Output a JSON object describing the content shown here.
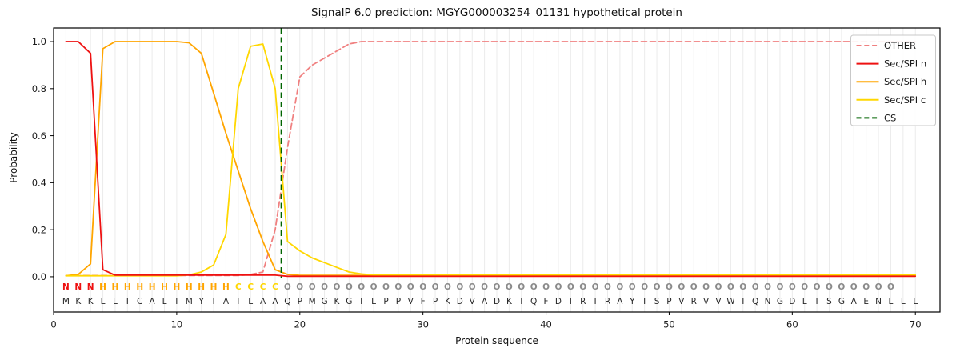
{
  "figure": {
    "title": "SignalP 6.0 prediction: MGYG000003254_01131 hypothetical protein",
    "xlabel": "Protein sequence",
    "ylabel": "Probability"
  },
  "chart_data": {
    "type": "line",
    "title": "SignalP 6.0 prediction: MGYG000003254_01131 hypothetical protein",
    "xlabel": "Protein sequence",
    "ylabel": "Probability",
    "xlim": [
      0,
      72
    ],
    "ylim": [
      -0.15,
      1.058
    ],
    "x_ticks": [
      0,
      10,
      20,
      30,
      40,
      50,
      60,
      70
    ],
    "y_ticks": [
      0.0,
      0.2,
      0.4,
      0.6,
      0.8,
      1.0
    ],
    "grid": "vertical gridline at every residue position, light gray",
    "legend_position": "upper-right",
    "x": [
      1,
      2,
      3,
      4,
      5,
      6,
      7,
      8,
      9,
      10,
      11,
      12,
      13,
      14,
      15,
      16,
      17,
      18,
      19,
      20,
      21,
      22,
      23,
      24,
      25,
      26,
      27,
      28,
      29,
      30,
      31,
      32,
      33,
      34,
      35,
      36,
      37,
      38,
      39,
      40,
      41,
      42,
      43,
      44,
      45,
      46,
      47,
      48,
      49,
      50,
      51,
      52,
      53,
      54,
      55,
      56,
      57,
      58,
      59,
      60,
      61,
      62,
      63,
      64,
      65,
      66,
      67,
      68,
      69,
      70
    ],
    "series": [
      {
        "name": "OTHER",
        "color": "#f08080",
        "style": "dashed",
        "values": [
          0.005,
          0.005,
          0.005,
          0.005,
          0.005,
          0.005,
          0.005,
          0.005,
          0.005,
          0.005,
          0.005,
          0.005,
          0.005,
          0.005,
          0.005,
          0.01,
          0.02,
          0.2,
          0.55,
          0.85,
          0.9,
          0.93,
          0.96,
          0.99,
          1.0,
          1.0,
          1.0,
          1.0,
          1.0,
          1.0,
          1.0,
          1.0,
          1.0,
          1.0,
          1.0,
          1.0,
          1.0,
          1.0,
          1.0,
          1.0,
          1.0,
          1.0,
          1.0,
          1.0,
          1.0,
          1.0,
          1.0,
          1.0,
          1.0,
          1.0,
          1.0,
          1.0,
          1.0,
          1.0,
          1.0,
          1.0,
          1.0,
          1.0,
          1.0,
          1.0,
          1.0,
          1.0,
          1.0,
          1.0,
          1.0,
          1.0,
          1.0,
          1.0,
          1.0,
          1.0
        ]
      },
      {
        "name": "Sec/SPI n",
        "color": "#ee1111",
        "style": "solid",
        "values": [
          1.0,
          1.0,
          0.95,
          0.03,
          0.007,
          0.007,
          0.007,
          0.007,
          0.007,
          0.007,
          0.007,
          0.007,
          0.007,
          0.007,
          0.007,
          0.007,
          0.007,
          0.007,
          0.002,
          0.002,
          0.002,
          0.002,
          0.002,
          0.002,
          0.002,
          0.002,
          0.002,
          0.002,
          0.002,
          0.002,
          0.002,
          0.002,
          0.002,
          0.002,
          0.002,
          0.002,
          0.002,
          0.002,
          0.002,
          0.002,
          0.002,
          0.002,
          0.002,
          0.002,
          0.002,
          0.002,
          0.002,
          0.002,
          0.002,
          0.002,
          0.002,
          0.002,
          0.002,
          0.002,
          0.002,
          0.002,
          0.002,
          0.002,
          0.002,
          0.002,
          0.002,
          0.002,
          0.002,
          0.002,
          0.002,
          0.002,
          0.002,
          0.002,
          0.002,
          0.002
        ]
      },
      {
        "name": "Sec/SPI h",
        "color": "#ffa500",
        "style": "solid",
        "values": [
          0.004,
          0.01,
          0.055,
          0.97,
          1.0,
          1.0,
          1.0,
          1.0,
          1.0,
          1.0,
          0.995,
          0.95,
          0.78,
          0.61,
          0.45,
          0.29,
          0.15,
          0.03,
          0.01,
          0.006,
          0.006,
          0.006,
          0.006,
          0.006,
          0.006,
          0.006,
          0.006,
          0.006,
          0.006,
          0.006,
          0.006,
          0.006,
          0.006,
          0.006,
          0.006,
          0.006,
          0.006,
          0.006,
          0.006,
          0.006,
          0.006,
          0.006,
          0.006,
          0.006,
          0.006,
          0.006,
          0.006,
          0.006,
          0.006,
          0.006,
          0.006,
          0.006,
          0.006,
          0.006,
          0.006,
          0.006,
          0.006,
          0.006,
          0.006,
          0.006,
          0.006,
          0.006,
          0.006,
          0.006,
          0.006,
          0.006,
          0.006,
          0.006,
          0.006,
          0.006
        ]
      },
      {
        "name": "Sec/SPI c",
        "color": "#ffd700",
        "style": "solid",
        "values": [
          0.004,
          0.004,
          0.004,
          0.004,
          0.004,
          0.004,
          0.004,
          0.004,
          0.004,
          0.004,
          0.008,
          0.02,
          0.05,
          0.18,
          0.8,
          0.98,
          0.99,
          0.8,
          0.15,
          0.11,
          0.08,
          0.06,
          0.04,
          0.02,
          0.012,
          0.008,
          0.008,
          0.008,
          0.008,
          0.008,
          0.008,
          0.008,
          0.008,
          0.008,
          0.008,
          0.008,
          0.008,
          0.008,
          0.008,
          0.008,
          0.008,
          0.008,
          0.008,
          0.008,
          0.008,
          0.008,
          0.008,
          0.008,
          0.008,
          0.008,
          0.008,
          0.008,
          0.008,
          0.008,
          0.008,
          0.008,
          0.008,
          0.008,
          0.008,
          0.008,
          0.008,
          0.008,
          0.008,
          0.008,
          0.008,
          0.008,
          0.008,
          0.008,
          0.008,
          0.008
        ]
      }
    ],
    "cs_marker": {
      "name": "CS",
      "x": 18.5,
      "color": "#006400",
      "style": "dashed"
    },
    "legend_items": [
      "OTHER",
      "Sec/SPI n",
      "Sec/SPI h",
      "Sec/SPI c",
      "CS"
    ],
    "sequence": "MKKLLICALTMYTATLAAQPMGKGTLPPVFPKDVADKTQFDTRTRAYISPVRVVWTQNGDLISGAENLLL",
    "regions": "NNNHHHHHHHHHHHCCCCOOOOOOOOOOOOOOOOOOOOOOOOOOOOOOOOOOOOOOOOOOOOOOOOOO",
    "region_colors": {
      "N": "#ee1111",
      "H": "#ffa500",
      "C": "#ffd700",
      "O": "#8a8a8a"
    },
    "sequence_color": "#262626"
  }
}
